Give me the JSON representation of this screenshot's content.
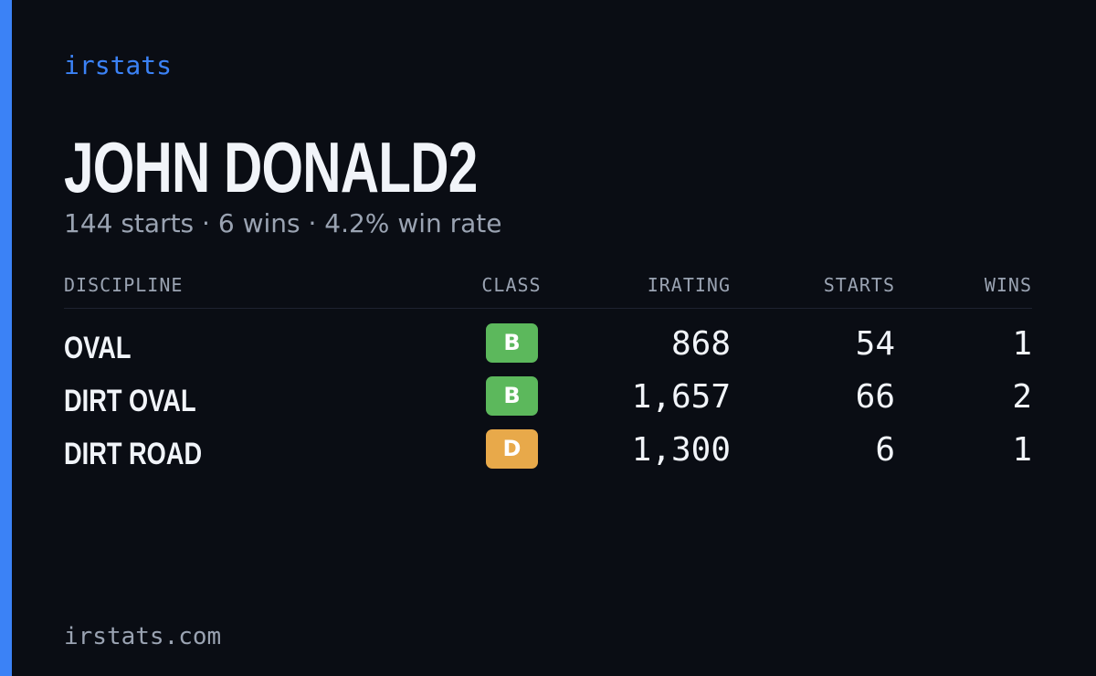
{
  "brand": "irstats",
  "driver": {
    "name": "JOHN DONALD2",
    "summary": "144 starts · 6 wins · 4.2% win rate"
  },
  "table": {
    "headers": {
      "discipline": "DISCIPLINE",
      "class": "CLASS",
      "irating": "IRATING",
      "starts": "STARTS",
      "wins": "WINS"
    },
    "rows": [
      {
        "discipline": "OVAL",
        "class": "B",
        "class_color": "#5cb85c",
        "irating": "868",
        "starts": "54",
        "wins": "1"
      },
      {
        "discipline": "DIRT OVAL",
        "class": "B",
        "class_color": "#5cb85c",
        "irating": "1,657",
        "starts": "66",
        "wins": "2"
      },
      {
        "discipline": "DIRT ROAD",
        "class": "D",
        "class_color": "#e8a94a",
        "irating": "1,300",
        "starts": "6",
        "wins": "1"
      }
    ]
  },
  "footer": "irstats.com",
  "colors": {
    "accent": "#3b82f6",
    "background": "#0a0d14",
    "muted": "#9aa3b2"
  }
}
